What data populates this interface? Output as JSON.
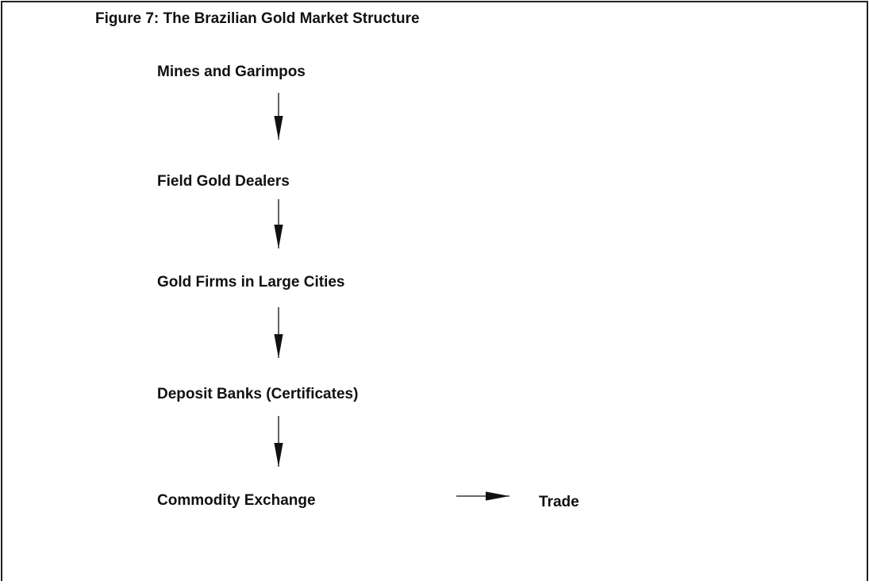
{
  "title": "Figure 7: The Brazilian Gold Market Structure",
  "nodes": [
    {
      "label": "Mines and Garimpos"
    },
    {
      "label": "Field Gold Dealers"
    },
    {
      "label": "Gold Firms in Large Cities"
    },
    {
      "label": "Deposit Banks (Certificates)"
    },
    {
      "label": "Commodity Exchange"
    },
    {
      "label": "Trade"
    }
  ]
}
